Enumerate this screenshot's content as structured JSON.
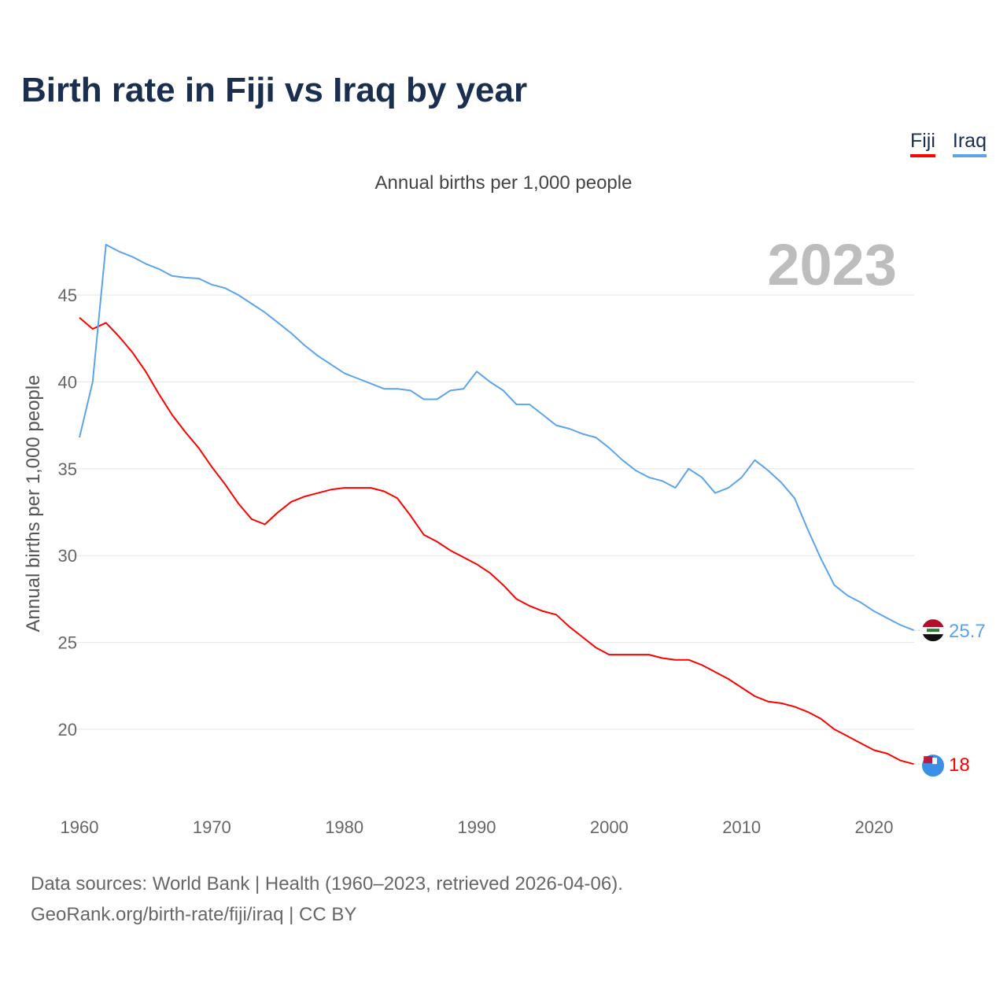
{
  "title": "Birth rate in Fiji vs Iraq by year",
  "footer": {
    "line1": "Data sources: World Bank | Health (1960–2023, retrieved 2026-04-06).",
    "line2": "GeoRank.org/birth-rate/fiji/iraq | CC BY"
  },
  "chart_data": {
    "type": "line",
    "title": "Birth rate in Fiji vs Iraq by year",
    "subtitle": "Annual births per 1,000 people",
    "xlabel": "",
    "ylabel": "Annual births per 1,000 people",
    "year_label": "2023",
    "xlim": [
      1960,
      2023
    ],
    "ylim": [
      16,
      48
    ],
    "x_ticks": [
      1960,
      1970,
      1980,
      1990,
      2000,
      2010,
      2020
    ],
    "y_ticks": [
      20,
      25,
      30,
      35,
      40,
      45
    ],
    "grid": true,
    "legend_position": "top-right",
    "x": [
      1960,
      1961,
      1962,
      1963,
      1964,
      1965,
      1966,
      1967,
      1968,
      1969,
      1970,
      1971,
      1972,
      1973,
      1974,
      1975,
      1976,
      1977,
      1978,
      1979,
      1980,
      1981,
      1982,
      1983,
      1984,
      1985,
      1986,
      1987,
      1988,
      1989,
      1990,
      1991,
      1992,
      1993,
      1994,
      1995,
      1996,
      1997,
      1998,
      1999,
      2000,
      2001,
      2002,
      2003,
      2004,
      2005,
      2006,
      2007,
      2008,
      2009,
      2010,
      2011,
      2012,
      2013,
      2014,
      2015,
      2016,
      2017,
      2018,
      2019,
      2020,
      2021,
      2022,
      2023
    ],
    "series": [
      {
        "name": "Fiji",
        "color": "#ff0000",
        "end_label": "18",
        "values": [
          43.7,
          43.05,
          43.4,
          42.6,
          41.7,
          40.6,
          39.3,
          38.1,
          37.1,
          36.2,
          35.1,
          34.1,
          33.0,
          32.1,
          31.8,
          32.5,
          33.1,
          33.4,
          33.6,
          33.8,
          33.9,
          33.9,
          33.9,
          33.7,
          33.3,
          32.3,
          31.2,
          30.8,
          30.3,
          29.9,
          29.5,
          29.0,
          28.3,
          27.5,
          27.1,
          26.8,
          26.6,
          25.9,
          25.3,
          24.7,
          24.3,
          24.3,
          24.3,
          24.3,
          24.1,
          24.0,
          24.0,
          23.7,
          23.3,
          22.9,
          22.4,
          21.9,
          21.6,
          21.5,
          21.3,
          21.0,
          20.6,
          20.0,
          19.6,
          19.2,
          18.8,
          18.6,
          18.2,
          18.0
        ]
      },
      {
        "name": "Iraq",
        "color": "#5ba4ec",
        "end_label": "25.7",
        "values": [
          36.8,
          40.0,
          47.9,
          47.5,
          47.2,
          46.8,
          46.5,
          46.1,
          46.0,
          45.95,
          45.6,
          45.4,
          45.0,
          44.5,
          44.0,
          43.4,
          42.8,
          42.1,
          41.5,
          41.0,
          40.5,
          40.2,
          39.9,
          39.6,
          39.6,
          39.5,
          39.0,
          39.0,
          39.5,
          39.6,
          40.6,
          40.0,
          39.5,
          38.7,
          38.7,
          38.1,
          37.5,
          37.3,
          37.0,
          36.8,
          36.2,
          35.5,
          34.9,
          34.5,
          34.3,
          33.9,
          35.0,
          34.5,
          33.6,
          33.9,
          34.5,
          35.5,
          34.9,
          34.2,
          33.3,
          31.5,
          29.8,
          28.3,
          27.7,
          27.3,
          26.8,
          26.4,
          26.0,
          25.7
        ]
      }
    ]
  }
}
